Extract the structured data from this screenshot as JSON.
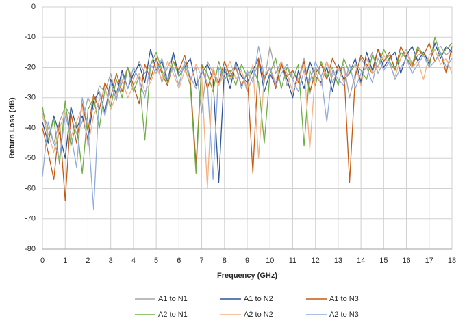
{
  "chart_data": {
    "type": "line",
    "xlabel": "Frequency (GHz)",
    "ylabel": "Return Loss (dB)",
    "xlim": [
      0,
      18
    ],
    "ylim": [
      -80,
      0
    ],
    "xticks": [
      0,
      1,
      2,
      3,
      4,
      5,
      6,
      7,
      8,
      9,
      10,
      11,
      12,
      13,
      14,
      15,
      16,
      17,
      18
    ],
    "yticks": [
      -80,
      -70,
      -60,
      -50,
      -40,
      -30,
      -20,
      -10,
      0
    ],
    "grid": true,
    "legend": "bottom",
    "x": [
      0,
      0.25,
      0.5,
      0.75,
      1,
      1.25,
      1.5,
      1.75,
      2,
      2.25,
      2.5,
      2.75,
      3,
      3.25,
      3.5,
      3.75,
      4,
      4.25,
      4.5,
      4.75,
      5,
      5.25,
      5.5,
      5.75,
      6,
      6.25,
      6.5,
      6.75,
      7,
      7.25,
      7.5,
      7.75,
      8,
      8.25,
      8.5,
      8.75,
      9,
      9.25,
      9.5,
      9.75,
      10,
      10.25,
      10.5,
      10.75,
      11,
      11.25,
      11.5,
      11.75,
      12,
      12.25,
      12.5,
      12.75,
      13,
      13.25,
      13.5,
      13.75,
      14,
      14.25,
      14.5,
      14.75,
      15,
      15.25,
      15.5,
      15.75,
      16,
      16.25,
      16.5,
      16.75,
      17,
      17.25,
      17.5,
      17.75,
      18
    ],
    "series": [
      {
        "name": "A1 to N1",
        "color": "#a5a5a5",
        "values": [
          -35,
          -40,
          -45,
          -38,
          -33,
          -36,
          -42,
          -38,
          -30,
          -34,
          -26,
          -28,
          -22,
          -30,
          -25,
          -20,
          -24,
          -18,
          -22,
          -19,
          -17,
          -25,
          -20,
          -16,
          -22,
          -19,
          -24,
          -20,
          -35,
          -18,
          -22,
          -26,
          -20,
          -24,
          -19,
          -21,
          -28,
          -23,
          -19,
          -25,
          -13,
          -22,
          -18,
          -26,
          -21,
          -24,
          -17,
          -29,
          -20,
          -23,
          -18,
          -25,
          -21,
          -19,
          -30,
          -22,
          -17,
          -20,
          -15,
          -22,
          -18,
          -16,
          -20,
          -17,
          -14,
          -19,
          -16,
          -15,
          -18,
          -14,
          -13,
          -16,
          -14
        ]
      },
      {
        "name": "A1 to N2",
        "color": "#2f5597",
        "values": [
          -38,
          -45,
          -36,
          -42,
          -50,
          -33,
          -40,
          -36,
          -44,
          -31,
          -28,
          -35,
          -24,
          -29,
          -21,
          -27,
          -22,
          -19,
          -25,
          -14,
          -21,
          -18,
          -25,
          -15,
          -23,
          -20,
          -17,
          -26,
          -22,
          -19,
          -24,
          -58,
          -20,
          -27,
          -18,
          -23,
          -25,
          -21,
          -17,
          -28,
          -22,
          -26,
          -19,
          -24,
          -30,
          -21,
          -27,
          -18,
          -23,
          -25,
          -20,
          -28,
          -19,
          -24,
          -22,
          -17,
          -25,
          -15,
          -21,
          -14,
          -20,
          -17,
          -15,
          -22,
          -16,
          -13,
          -18,
          -15,
          -19,
          -12,
          -17,
          -13,
          -15
        ]
      },
      {
        "name": "A1 to N3",
        "color": "#c55a11",
        "values": [
          -40,
          -48,
          -57,
          -38,
          -64,
          -35,
          -45,
          -32,
          -41,
          -29,
          -34,
          -25,
          -30,
          -22,
          -28,
          -20,
          -26,
          -32,
          -19,
          -24,
          -17,
          -22,
          -26,
          -18,
          -21,
          -16,
          -24,
          -52,
          -19,
          -27,
          -21,
          -25,
          -18,
          -23,
          -20,
          -26,
          -22,
          -55,
          -17,
          -24,
          -20,
          -27,
          -19,
          -23,
          -21,
          -25,
          -18,
          -28,
          -22,
          -19,
          -24,
          -17,
          -21,
          -20,
          -58,
          -23,
          -16,
          -19,
          -22,
          -14,
          -18,
          -15,
          -21,
          -13,
          -17,
          -20,
          -14,
          -16,
          -12,
          -18,
          -15,
          -22,
          -13
        ]
      },
      {
        "name": "A2 to N1",
        "color": "#70ad47",
        "values": [
          -33,
          -44,
          -37,
          -52,
          -31,
          -46,
          -38,
          -55,
          -34,
          -30,
          -40,
          -27,
          -33,
          -24,
          -30,
          -20,
          -28,
          -23,
          -44,
          -19,
          -15,
          -21,
          -25,
          -18,
          -23,
          -20,
          -26,
          -55,
          -19,
          -22,
          -28,
          -18,
          -24,
          -21,
          -26,
          -19,
          -23,
          -20,
          -25,
          -45,
          -22,
          -17,
          -27,
          -20,
          -24,
          -19,
          -46,
          -21,
          -26,
          -18,
          -23,
          -20,
          -26,
          -17,
          -22,
          -19,
          -21,
          -24,
          -16,
          -20,
          -14,
          -18,
          -21,
          -15,
          -17,
          -19,
          -13,
          -16,
          -20,
          -10,
          -16,
          -14,
          -12
        ]
      },
      {
        "name": "A2 to N2",
        "color": "#f4b183",
        "values": [
          -36,
          -42,
          -48,
          -40,
          -35,
          -43,
          -38,
          -33,
          -46,
          -36,
          -31,
          -27,
          -34,
          -29,
          -24,
          -30,
          -26,
          -22,
          -28,
          -25,
          -20,
          -24,
          -18,
          -22,
          -27,
          -21,
          -25,
          -19,
          -23,
          -60,
          -20,
          -26,
          -22,
          -18,
          -24,
          -21,
          -27,
          -19,
          -50,
          -23,
          -20,
          -25,
          -18,
          -22,
          -28,
          -24,
          -19,
          -47,
          -21,
          -26,
          -18,
          -23,
          -20,
          -25,
          -21,
          -19,
          -26,
          -17,
          -22,
          -20,
          -16,
          -19,
          -23,
          -17,
          -15,
          -20,
          -18,
          -24,
          -16,
          -14,
          -19,
          -17,
          -22
        ]
      },
      {
        "name": "A2 to N3",
        "color": "#8faadc",
        "values": [
          -56,
          -38,
          -45,
          -50,
          -36,
          -42,
          -53,
          -30,
          -40,
          -67,
          -28,
          -36,
          -25,
          -31,
          -22,
          -27,
          -20,
          -24,
          -30,
          -19,
          -22,
          -17,
          -24,
          -20,
          -26,
          -18,
          -23,
          -27,
          -21,
          -25,
          -57,
          -20,
          -24,
          -22,
          -19,
          -27,
          -21,
          -25,
          -13,
          -23,
          -20,
          -26,
          -22,
          -19,
          -24,
          -28,
          -21,
          -25,
          -18,
          -23,
          -38,
          -21,
          -24,
          -26,
          -19,
          -27,
          -22,
          -20,
          -25,
          -17,
          -21,
          -18,
          -24,
          -20,
          -17,
          -22,
          -19,
          -16,
          -20,
          -18,
          -15,
          -20,
          -17
        ]
      }
    ]
  }
}
